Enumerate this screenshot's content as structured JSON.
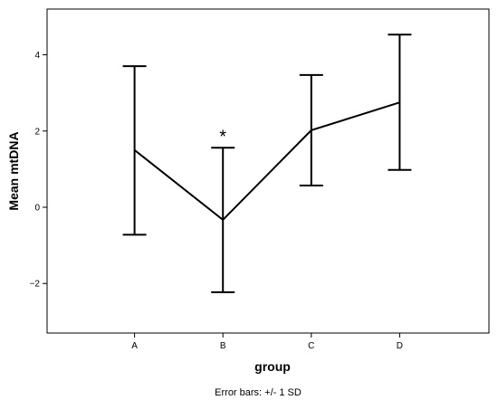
{
  "chart_data": {
    "type": "line",
    "xlabel": "group",
    "ylabel": "Mean mtDNA",
    "categories": [
      "A",
      "B",
      "C",
      "D"
    ],
    "series": [
      {
        "values": [
          1.5,
          -0.33,
          2.02,
          2.75
        ],
        "error_low": [
          -0.72,
          -2.23,
          0.57,
          0.98
        ],
        "error_high": [
          3.7,
          1.56,
          3.47,
          4.53
        ]
      }
    ],
    "ylim": [
      -3.3,
      5.2
    ],
    "yticks": [
      -2,
      0,
      2,
      4
    ],
    "ytick_labels": [
      "−2",
      "0",
      "2",
      "4"
    ],
    "grid": false,
    "legend": "none",
    "annotations": [
      {
        "text": "*",
        "category": "B"
      }
    ],
    "footnote": "Error bars: +/- 1 SD"
  }
}
